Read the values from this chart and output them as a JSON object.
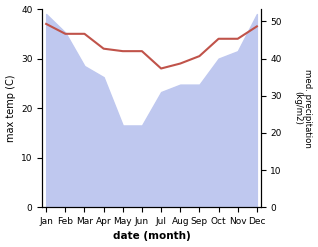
{
  "months": [
    "Jan",
    "Feb",
    "Mar",
    "Apr",
    "May",
    "Jun",
    "Jul",
    "Aug",
    "Sep",
    "Oct",
    "Nov",
    "Dec"
  ],
  "x": [
    0,
    1,
    2,
    3,
    4,
    5,
    6,
    7,
    8,
    9,
    10,
    11
  ],
  "max_temp": [
    37,
    35,
    35,
    32,
    31.5,
    31.5,
    28,
    29,
    30.5,
    34,
    34,
    36.5
  ],
  "precipitation": [
    52,
    47,
    38,
    35,
    22,
    22,
    31,
    33,
    33,
    40,
    42,
    52
  ],
  "xlabel": "date (month)",
  "ylabel_left": "max temp (C)",
  "ylabel_right": "med. precipitation\n(kg/m2)",
  "ylim_left": [
    0,
    40
  ],
  "ylim_right": [
    0,
    53.33
  ],
  "temp_color": "#c0534a",
  "precip_fill_color": "#bfc8ef",
  "bg_color": "#ffffff",
  "left_yticks": [
    0,
    10,
    20,
    30,
    40
  ],
  "right_yticks": [
    0,
    10,
    20,
    30,
    40,
    50
  ]
}
